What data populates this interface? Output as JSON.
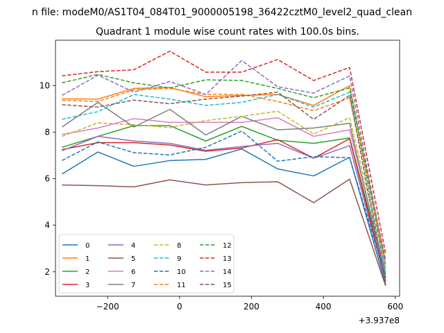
{
  "figure": {
    "suptitle": "n file: modeM0/AS1T04_084T01_9000005198_36422cztM0_level2_quad_clean",
    "title": "Quadrant 1 module wise count rates with 100.0s bins.",
    "offset_label": "+3.937e8"
  },
  "chart_data": {
    "type": "line",
    "title": "Quadrant 1 module wise count rates with 100.0s bins.",
    "xlabel": "",
    "ylabel": "",
    "x_offset": 393700000,
    "xlim": [
      -345,
      612
    ],
    "ylim": [
      0.95,
      11.95
    ],
    "xticks": [
      -200,
      0,
      200,
      400,
      600
    ],
    "xtick_labels": [
      "−200",
      "0",
      "200",
      "400",
      "600"
    ],
    "yticks": [
      2,
      4,
      6,
      8,
      10
    ],
    "ytick_labels": [
      "2",
      "4",
      "6",
      "8",
      "10"
    ],
    "grid": false,
    "legend": {
      "placement": "lower-left",
      "columns": 4
    },
    "x": [
      -327,
      -227,
      -127,
      -27,
      73,
      173,
      273,
      373,
      473,
      573
    ],
    "series": [
      {
        "name": "0",
        "color": "#1f77b4",
        "dash": "solid",
        "values": [
          6.2,
          7.15,
          6.53,
          6.78,
          6.83,
          7.28,
          6.42,
          6.12,
          6.92,
          1.45
        ]
      },
      {
        "name": "1",
        "color": "#ff7f0e",
        "dash": "solid",
        "values": [
          9.43,
          9.42,
          9.88,
          9.92,
          9.52,
          9.58,
          9.62,
          9.15,
          10.0,
          2.15
        ]
      },
      {
        "name": "2",
        "color": "#2ca02c",
        "dash": "solid",
        "values": [
          7.35,
          7.82,
          8.28,
          8.28,
          7.62,
          8.25,
          7.65,
          7.52,
          7.75,
          1.9
        ]
      },
      {
        "name": "3",
        "color": "#d62728",
        "dash": "solid",
        "values": [
          7.25,
          7.55,
          7.55,
          7.45,
          7.18,
          7.32,
          7.68,
          6.88,
          7.72,
          1.65
        ]
      },
      {
        "name": "4",
        "color": "#9467bd",
        "dash": "solid",
        "values": [
          7.2,
          7.82,
          7.62,
          7.52,
          7.22,
          7.38,
          7.52,
          6.88,
          7.42,
          1.6
        ]
      },
      {
        "name": "5",
        "color": "#8c564b",
        "dash": "solid",
        "values": [
          5.73,
          5.7,
          5.65,
          5.95,
          5.73,
          5.83,
          5.87,
          4.97,
          5.98,
          1.4
        ]
      },
      {
        "name": "6",
        "color": "#e377c2",
        "dash": "solid",
        "values": [
          7.9,
          8.18,
          8.58,
          8.42,
          8.42,
          8.42,
          8.62,
          7.82,
          8.1,
          2.0
        ]
      },
      {
        "name": "7",
        "color": "#7f7f7f",
        "dash": "solid",
        "values": [
          8.22,
          9.28,
          8.22,
          8.98,
          7.88,
          8.68,
          8.1,
          8.18,
          8.38,
          1.75
        ]
      },
      {
        "name": "8",
        "color": "#bcbd22",
        "dash": "dashed",
        "values": [
          7.82,
          8.4,
          8.32,
          8.2,
          8.5,
          8.68,
          8.9,
          7.92,
          8.62,
          2.2
        ]
      },
      {
        "name": "9",
        "color": "#17becf",
        "dash": "dashed",
        "values": [
          8.55,
          8.88,
          9.62,
          9.42,
          9.15,
          9.28,
          9.62,
          9.08,
          9.72,
          1.95
        ]
      },
      {
        "name": "10",
        "color": "#1f77b4",
        "dash": "dashed",
        "values": [
          6.78,
          7.58,
          7.12,
          7.02,
          7.35,
          8.05,
          6.75,
          6.95,
          6.9,
          1.75
        ]
      },
      {
        "name": "11",
        "color": "#ff7f0e",
        "dash": "dashed",
        "values": [
          9.37,
          9.32,
          9.82,
          9.88,
          9.62,
          9.62,
          9.32,
          8.92,
          9.48,
          2.55
        ]
      },
      {
        "name": "12",
        "color": "#2ca02c",
        "dash": "dashed",
        "values": [
          10.12,
          10.48,
          10.12,
          9.9,
          10.25,
          10.22,
          9.88,
          9.48,
          9.9,
          2.45
        ]
      },
      {
        "name": "13",
        "color": "#d62728",
        "dash": "dashed",
        "values": [
          10.42,
          10.6,
          10.68,
          11.48,
          10.58,
          10.58,
          11.12,
          10.22,
          10.78,
          2.8
        ]
      },
      {
        "name": "14",
        "color": "#9467bd",
        "dash": "dashed",
        "values": [
          9.58,
          10.45,
          9.72,
          10.18,
          9.62,
          11.08,
          9.95,
          9.68,
          10.42,
          2.3
        ]
      },
      {
        "name": "15",
        "color": "#8c564b",
        "dash": "dashed",
        "values": [
          9.18,
          9.08,
          9.38,
          9.22,
          9.42,
          9.55,
          9.72,
          8.55,
          9.58,
          1.55
        ]
      }
    ]
  }
}
